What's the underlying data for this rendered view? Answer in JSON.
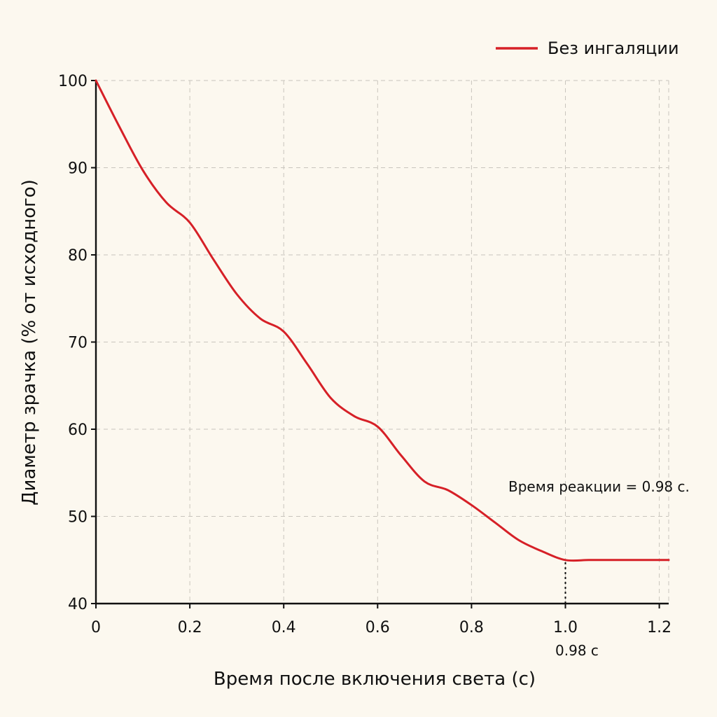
{
  "chart_data": {
    "type": "line",
    "title": "",
    "xlabel": "Время после включения света (с)",
    "ylabel": "Диаметр зрачка (% от исходного)",
    "xlim": [
      0,
      1.22
    ],
    "ylim": [
      40,
      100
    ],
    "x_ticks": [
      0,
      0.2,
      0.4,
      0.6,
      0.8,
      1.0,
      1.2
    ],
    "x_tick_labels": [
      "0",
      "0.2",
      "0.4",
      "0.6",
      "0.8",
      "1.0",
      "1.2"
    ],
    "y_ticks": [
      40,
      50,
      60,
      70,
      80,
      90,
      100
    ],
    "y_tick_labels": [
      "40",
      "50",
      "60",
      "70",
      "80",
      "90",
      "100"
    ],
    "grid": true,
    "legend_position": "top-right",
    "series": [
      {
        "name": "Без ингаляции",
        "color": "#d62027",
        "x": [
          0,
          0.05,
          0.1,
          0.15,
          0.2,
          0.25,
          0.3,
          0.35,
          0.4,
          0.45,
          0.5,
          0.55,
          0.6,
          0.65,
          0.7,
          0.75,
          0.8,
          0.85,
          0.9,
          0.95,
          1.0,
          1.05,
          1.1,
          1.15,
          1.2,
          1.22
        ],
        "y": [
          100,
          94.7,
          89.7,
          86.0,
          83.7,
          79.5,
          75.5,
          72.7,
          71.2,
          67.5,
          63.6,
          61.5,
          60.3,
          57.0,
          54.0,
          53.0,
          51.3,
          49.3,
          47.3,
          46.0,
          45.0,
          45.0,
          45.0,
          45.0,
          45.0,
          45.0
        ]
      }
    ],
    "annotations": [
      {
        "text": "Время реакции = 0.98 с."
      },
      {
        "text": "0.98 с",
        "x": 1.0
      }
    ],
    "reference_line": {
      "x": 1.0,
      "y_from": 40,
      "y_to": 45,
      "style": "dotted"
    }
  }
}
